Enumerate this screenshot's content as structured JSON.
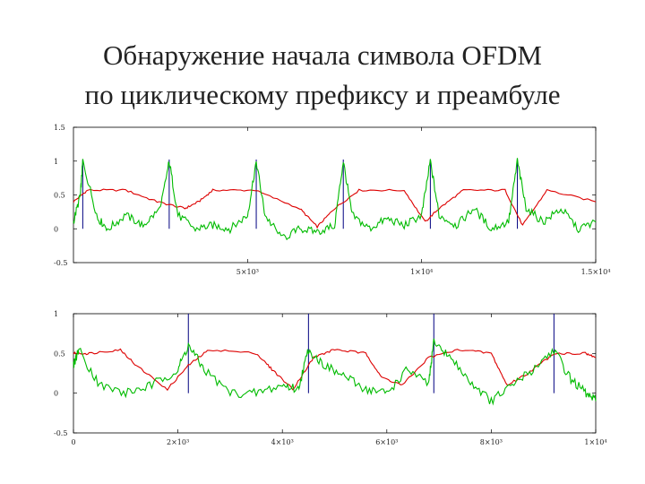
{
  "page": {
    "title_line1": "Обнаружение начала символа OFDM",
    "title_line2": "по циклическому префиксу и преамбуле"
  },
  "chart_data": [
    {
      "type": "line",
      "xlim": [
        0,
        15000
      ],
      "ylim": [
        -0.5,
        1.5
      ],
      "grid": false,
      "x_tick_labels": [
        "5×10³",
        "1×10⁴",
        "1.5×10⁴"
      ],
      "x_ticks": [
        5000,
        10000,
        15000
      ],
      "y_tick_labels": [
        "-0.5",
        "0",
        "0.5",
        "1",
        "1.5"
      ],
      "y_ticks": [
        -0.5,
        0,
        0.5,
        1,
        1.5
      ],
      "markers_x": [
        267,
        2750,
        5250,
        7750,
        10250,
        12750
      ],
      "series": [
        {
          "color": "#dd0000",
          "x": [
            0,
            400,
            1500,
            2400,
            3200,
            3600,
            4000,
            5200,
            6500,
            7000,
            7500,
            8200,
            9500,
            10100,
            10500,
            11200,
            12400,
            12900,
            13600,
            15000
          ],
          "y": [
            0.4,
            0.57,
            0.57,
            0.4,
            0.3,
            0.4,
            0.57,
            0.57,
            0.3,
            0.03,
            0.3,
            0.57,
            0.57,
            0.1,
            0.3,
            0.57,
            0.57,
            0.05,
            0.57,
            0.4
          ]
        },
        {
          "color": "#00bb00",
          "x": [
            0,
            200,
            267,
            700,
            1000,
            1500,
            2000,
            2500,
            2750,
            3000,
            3500,
            4000,
            4500,
            5000,
            5250,
            5500,
            6000,
            6500,
            7000,
            7500,
            7750,
            8000,
            8500,
            9000,
            9500,
            10000,
            10250,
            10500,
            11000,
            11500,
            12000,
            12500,
            12750,
            13000,
            13500,
            14000,
            14500,
            15000
          ],
          "y": [
            0.1,
            0.5,
            1.0,
            0.15,
            0.0,
            0.2,
            0.05,
            0.3,
            1.0,
            0.2,
            0.0,
            0.05,
            0.0,
            0.2,
            1.0,
            0.2,
            -0.15,
            0.0,
            -0.05,
            0.05,
            1.0,
            0.2,
            0.0,
            0.15,
            0.05,
            0.2,
            1.0,
            0.2,
            0.05,
            0.3,
            0.0,
            0.1,
            1.0,
            0.3,
            0.1,
            0.3,
            0.0,
            0.1
          ]
        }
      ]
    },
    {
      "type": "line",
      "xlim": [
        0,
        10000
      ],
      "ylim": [
        -0.5,
        1
      ],
      "grid": false,
      "x_tick_labels": [
        "0",
        "2×10³",
        "4×10³",
        "6×10³",
        "8×10³",
        "1×10⁴"
      ],
      "x_ticks": [
        0,
        2000,
        4000,
        6000,
        8000,
        10000
      ],
      "y_tick_labels": [
        "-0.5",
        "0",
        "0.5",
        "1"
      ],
      "y_ticks": [
        -0.5,
        0,
        0.5,
        1
      ],
      "markers_x": [
        2200,
        4500,
        6900,
        9200
      ],
      "series": [
        {
          "color": "#dd0000",
          "x": [
            0,
            300,
            900,
            1200,
            1800,
            2200,
            2600,
            3500,
            3800,
            4200,
            4600,
            5000,
            5600,
            5900,
            6300,
            6800,
            7400,
            8000,
            8300,
            8700,
            9200,
            9800,
            10000
          ],
          "y": [
            0.5,
            0.5,
            0.55,
            0.35,
            0.05,
            0.35,
            0.55,
            0.5,
            0.3,
            0.05,
            0.45,
            0.55,
            0.5,
            0.2,
            0.1,
            0.45,
            0.55,
            0.5,
            0.1,
            0.25,
            0.5,
            0.5,
            0.45
          ]
        },
        {
          "color": "#00bb00",
          "x": [
            0,
            100,
            500,
            1000,
            1500,
            2000,
            2200,
            2500,
            3000,
            3500,
            4000,
            4300,
            4500,
            4800,
            5200,
            5600,
            6000,
            6400,
            6800,
            6900,
            7200,
            7600,
            8000,
            8400,
            8800,
            9200,
            9500,
            9800,
            10000
          ],
          "y": [
            0.35,
            0.55,
            0.1,
            0.0,
            0.1,
            0.3,
            0.6,
            0.3,
            0.0,
            0.0,
            0.1,
            0.05,
            0.55,
            0.35,
            0.2,
            0.05,
            0.0,
            0.3,
            0.1,
            0.65,
            0.45,
            0.15,
            -0.1,
            0.1,
            0.3,
            0.55,
            0.2,
            0.0,
            -0.1
          ]
        }
      ]
    }
  ]
}
